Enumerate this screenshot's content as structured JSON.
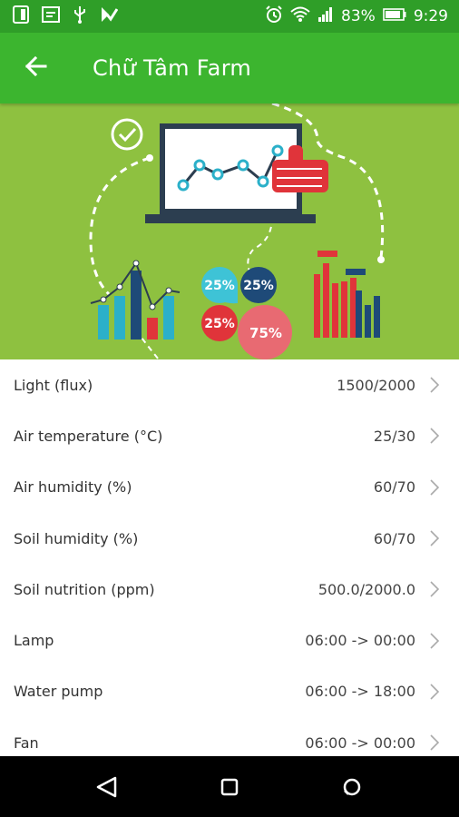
{
  "status_bar": {
    "battery_percent": "83%",
    "time": "9:29",
    "icons": [
      "sim-card-icon",
      "text-file-icon",
      "usb-icon",
      "checklist-app-icon",
      "alarm-icon",
      "wifi-icon",
      "signal-icon",
      "battery-icon"
    ]
  },
  "app_bar": {
    "title": "Chữ Tâm Farm",
    "back_icon": "arrow-left-icon"
  },
  "banner": {
    "pie_labels": [
      "25%",
      "25%",
      "25%",
      "75%"
    ]
  },
  "readings": [
    {
      "label": "Light (flux)",
      "value": "1500/2000"
    },
    {
      "label": "Air temperature (°C)",
      "value": "25/30"
    },
    {
      "label": "Air humidity (%)",
      "value": "60/70"
    },
    {
      "label": "Soil humidity (%)",
      "value": "60/70"
    },
    {
      "label": "Soil nutrition (ppm)",
      "value": "500.0/2000.0"
    },
    {
      "label": "Lamp",
      "value": "06:00 -> 00:00"
    },
    {
      "label": "Water pump",
      "value": "06:00 -> 18:00"
    },
    {
      "label": "Fan",
      "value": "06:00 -> 00:00"
    }
  ],
  "nav_bar": {
    "icons": [
      "back-triangle-icon",
      "home-square-icon",
      "recents-icon"
    ]
  },
  "colors": {
    "status_bar": "#2f9e28",
    "app_bar": "#3cb52f",
    "banner_bg": "#8ec140"
  }
}
